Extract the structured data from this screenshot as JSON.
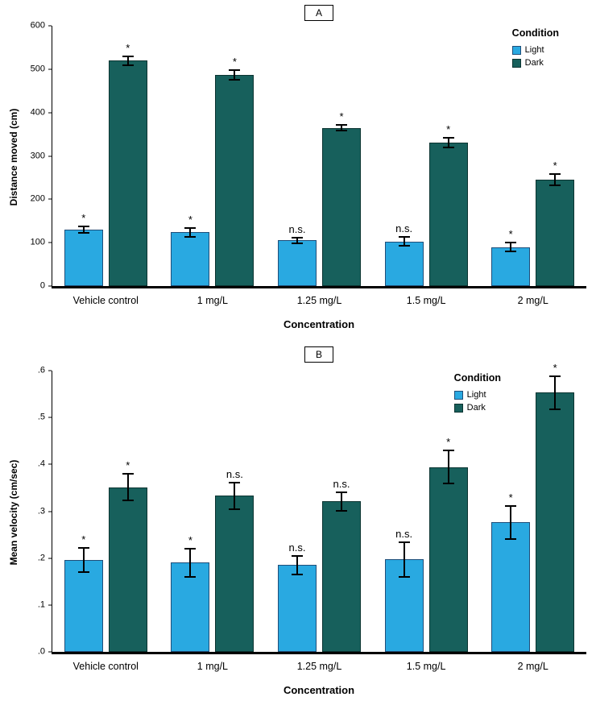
{
  "figure": {
    "panel_labels": [
      "A",
      "B"
    ]
  },
  "chart_data": [
    {
      "type": "bar",
      "title": "A",
      "xlabel": "Concentration",
      "ylabel": "Distance moved (cm)",
      "ylim": [
        0,
        600
      ],
      "yticks": [
        0,
        100,
        200,
        300,
        400,
        500,
        600
      ],
      "ytick_labels": [
        "0",
        "100",
        "200",
        "300",
        "400",
        "500",
        "600"
      ],
      "categories": [
        "Vehicle control",
        "1 mg/L",
        "1.25 mg/L",
        "1.5 mg/L",
        "2 mg/L"
      ],
      "grid": false,
      "legend": {
        "title": "Condition",
        "position": "top-right"
      },
      "series": [
        {
          "name": "Light",
          "color": "#29A9E1",
          "border_color": "#1F4E79",
          "values": [
            130,
            124,
            105,
            103,
            90
          ],
          "errors": [
            10,
            12,
            8,
            12,
            12
          ],
          "significance": [
            "*",
            "*",
            "n.s.",
            "n.s.",
            "*"
          ]
        },
        {
          "name": "Dark",
          "color": "#17605C",
          "border_color": "#0C3431",
          "values": [
            520,
            487,
            365,
            330,
            245
          ],
          "errors": [
            12,
            13,
            9,
            13,
            15
          ],
          "significance": [
            "*",
            "*",
            "*",
            "*",
            "*"
          ]
        }
      ]
    },
    {
      "type": "bar",
      "title": "B",
      "xlabel": "Concentration",
      "ylabel": "Mean velocity (cm/sec)",
      "ylim": [
        0,
        0.6
      ],
      "yticks": [
        0,
        0.1,
        0.2,
        0.3,
        0.4,
        0.5,
        0.6
      ],
      "ytick_labels": [
        ".0",
        ".1",
        ".2",
        ".3",
        ".4",
        ".5",
        ".6"
      ],
      "categories": [
        "Vehicle control",
        "1 mg/L",
        "1.25 mg/L",
        "1.5 mg/L",
        "2 mg/L"
      ],
      "grid": false,
      "legend": {
        "title": "Condition",
        "position": "top-right"
      },
      "series": [
        {
          "name": "Light",
          "color": "#29A9E1",
          "border_color": "#1F4E79",
          "values": [
            0.196,
            0.19,
            0.185,
            0.197,
            0.276
          ],
          "errors": [
            0.027,
            0.031,
            0.021,
            0.038,
            0.037
          ],
          "significance": [
            "*",
            "*",
            "n.s.",
            "n.s.",
            "*"
          ]
        },
        {
          "name": "Dark",
          "color": "#17605C",
          "border_color": "#0C3431",
          "values": [
            0.351,
            0.333,
            0.321,
            0.394,
            0.553
          ],
          "errors": [
            0.03,
            0.03,
            0.022,
            0.037,
            0.037
          ],
          "significance": [
            "*",
            "n.s.",
            "n.s.",
            "*",
            "*"
          ]
        }
      ]
    }
  ]
}
